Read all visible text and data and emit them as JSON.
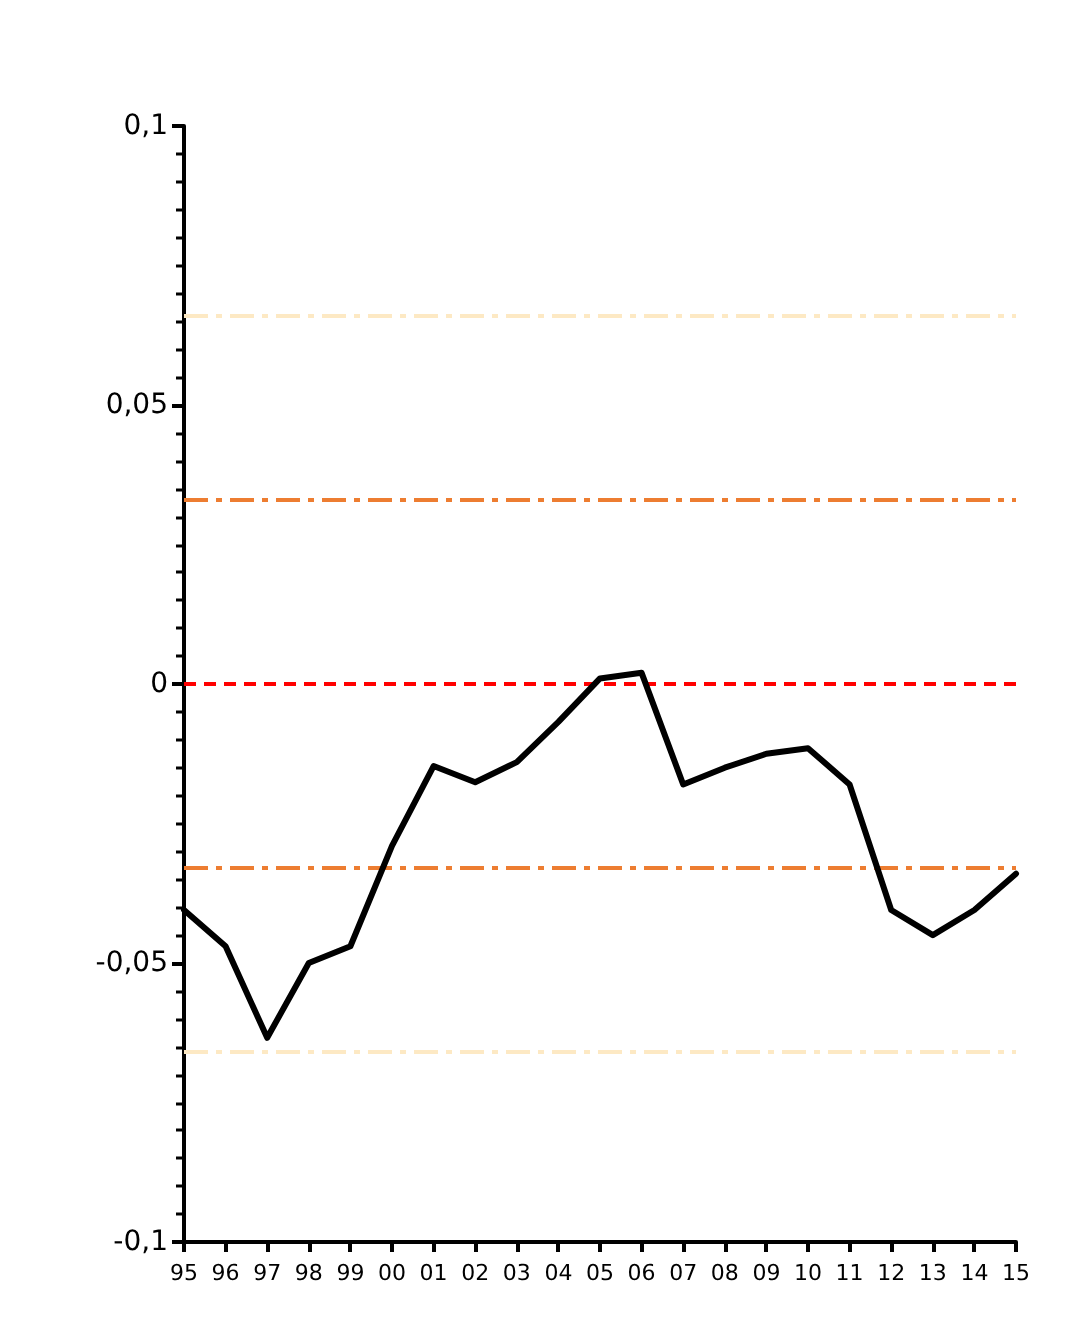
{
  "chart_data": {
    "type": "line",
    "categories": [
      "95",
      "96",
      "97",
      "98",
      "99",
      "00",
      "01",
      "02",
      "03",
      "04",
      "05",
      "06",
      "07",
      "08",
      "09",
      "10",
      "11",
      "12",
      "13",
      "14",
      "15"
    ],
    "series": [
      {
        "color": "#000000",
        "values": [
          -0.0405,
          -0.047,
          -0.0634,
          -0.05,
          -0.047,
          -0.029,
          -0.0147,
          -0.0176,
          -0.014,
          -0.0068,
          0.001,
          0.002,
          -0.018,
          -0.015,
          -0.0125,
          -0.0115,
          -0.018,
          -0.0405,
          -0.045,
          -0.0405,
          -0.034
        ]
      }
    ],
    "ylim": [
      -0.1,
      0.1
    ],
    "yticks": [
      {
        "value": -0.1,
        "label": "-0,1"
      },
      {
        "value": -0.05,
        "label": "-0,05"
      },
      {
        "value": 0,
        "label": "0"
      },
      {
        "value": 0.05,
        "label": "0,05"
      },
      {
        "value": 0.1,
        "label": "0,1"
      }
    ],
    "ref_lines": [
      {
        "axis": "y",
        "value": 0.066,
        "color": "#fde9c4",
        "line_style": "dashdot"
      },
      {
        "axis": "y",
        "value": 0.033,
        "color": "#ed7d31",
        "line_style": "dashdot"
      },
      {
        "axis": "y",
        "value": 0,
        "color": "#ff0000",
        "line_style": "dashed"
      },
      {
        "axis": "y",
        "value": -0.033,
        "color": "#ed7d31",
        "line_style": "dashdot"
      },
      {
        "axis": "y",
        "value": -0.066,
        "color": "#fde9c4",
        "line_style": "dashdot"
      }
    ],
    "grid": false,
    "marker": "none",
    "line_style": "solid"
  }
}
